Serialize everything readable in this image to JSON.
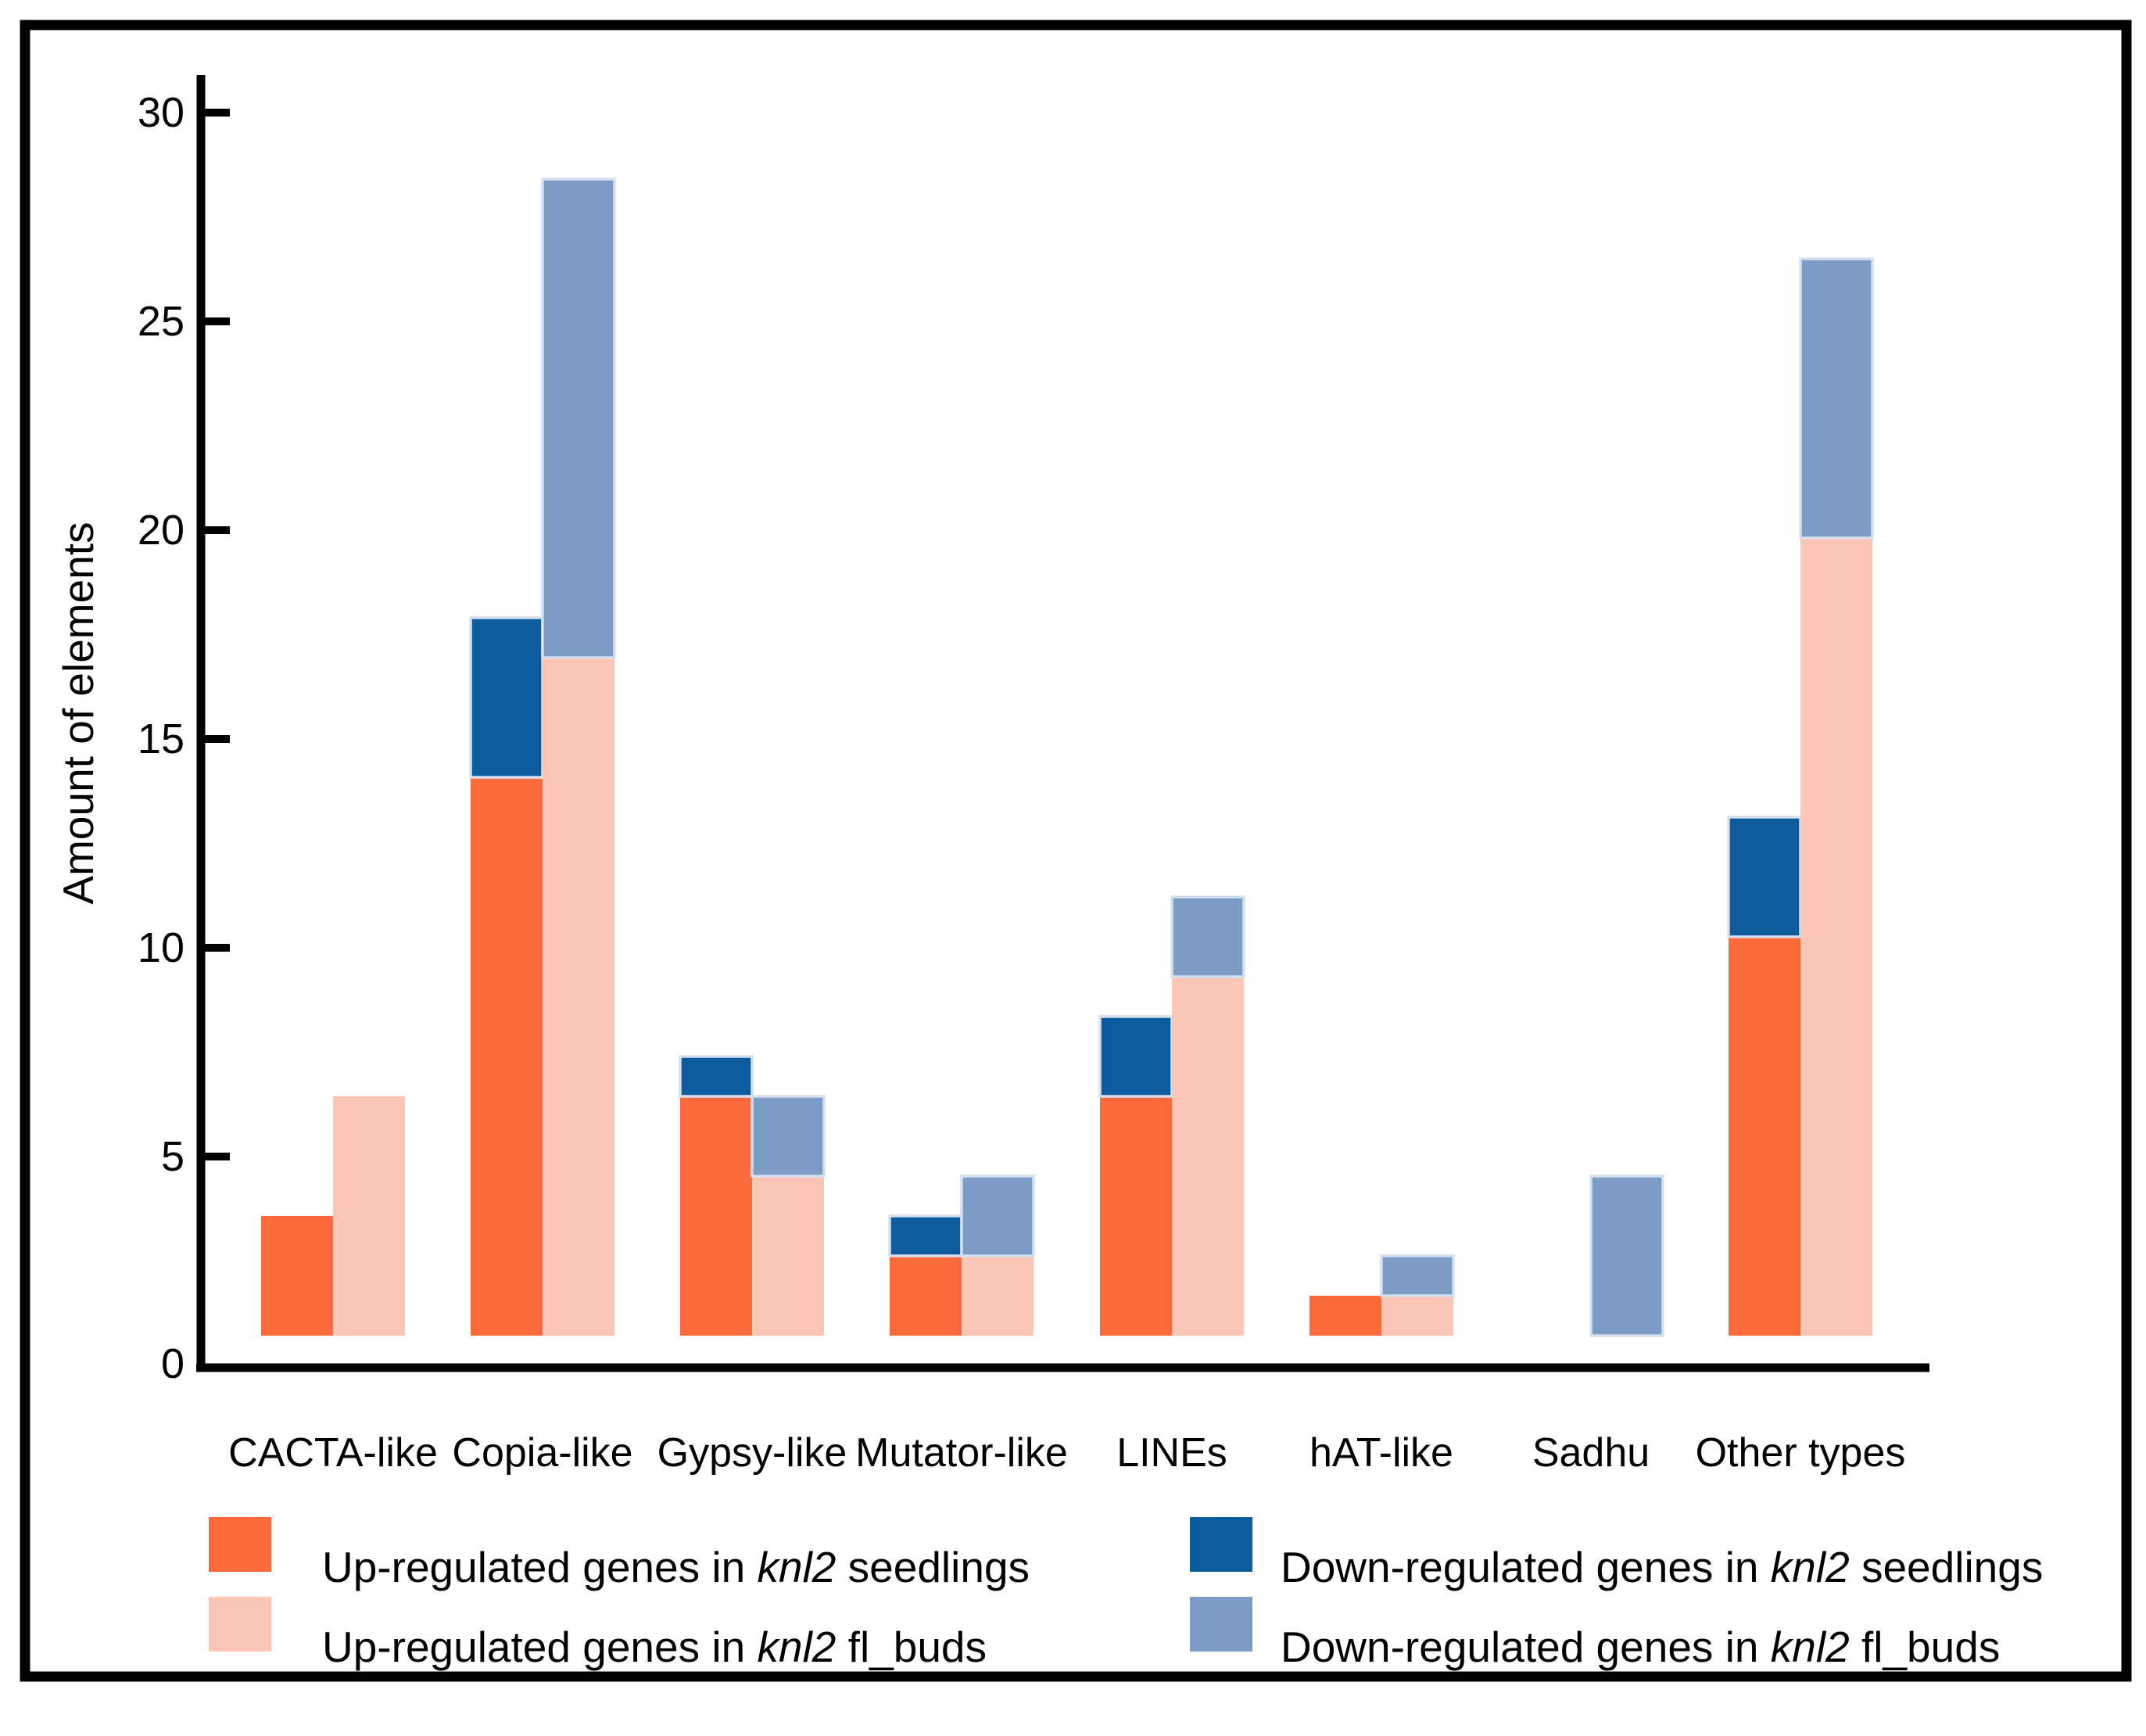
{
  "figure": {
    "background": "#ffffff",
    "frame_color": "#000000",
    "axis_color": "#000000",
    "bar_outline_color": "#D6DFEE"
  },
  "chart_data": {
    "type": "bar",
    "subtype": "grouped-stacked",
    "title": "",
    "xlabel": "",
    "ylabel": "Amount of elements",
    "ylim": [
      0,
      30
    ],
    "y_ticks": [
      0,
      5,
      10,
      15,
      20,
      25,
      30
    ],
    "grid": false,
    "legend_position": "bottom",
    "categories": [
      "CACTA-like",
      "Copia-like",
      "Gypsy-like",
      "Mutator-like",
      "LINEs",
      "hAT-like",
      "Sadhu",
      "Other types"
    ],
    "series": [
      {
        "name": "Up-regulated genes in knl2 seedlings",
        "stack": "seedlings",
        "color": "#FC6A3C",
        "outlined": false,
        "values": [
          3,
          14,
          6,
          2,
          6,
          1,
          0,
          10
        ]
      },
      {
        "name": "Down-regulated genes in knl2 seedlings",
        "stack": "seedlings",
        "color": "#0E5C9B",
        "outlined": true,
        "values": [
          0,
          4,
          1,
          1,
          2,
          0,
          0,
          3
        ]
      },
      {
        "name": "Up-regulated genes in knl2 fl_buds",
        "stack": "fl_buds",
        "color": "#FCC6B6",
        "outlined": false,
        "values": [
          6,
          17,
          4,
          2,
          9,
          1,
          0,
          20
        ]
      },
      {
        "name": "Down-regulated genes in knl2 fl_buds",
        "stack": "fl_buds",
        "color": "#7B9CC5",
        "outlined": true,
        "values": [
          0,
          12,
          2,
          2,
          2,
          1,
          4,
          7
        ]
      }
    ]
  },
  "legend": {
    "items": [
      {
        "pre": "Up-regulated genes in ",
        "em": "knl2",
        "post": " seedlings",
        "color": "#FC6A3C",
        "col": 0,
        "row": 0
      },
      {
        "pre": "Up-regulated genes in ",
        "em": "knl2",
        "post": " fl_buds",
        "color": "#FCC6B6",
        "col": 0,
        "row": 1
      },
      {
        "pre": "Down-regulated genes in ",
        "em": "knl2",
        "post": " seedlings",
        "color": "#0E5C9B",
        "col": 1,
        "row": 0
      },
      {
        "pre": "Down-regulated genes in ",
        "em": "knl2",
        "post": " fl_buds",
        "color": "#7B9CC5",
        "col": 1,
        "row": 1
      }
    ]
  }
}
